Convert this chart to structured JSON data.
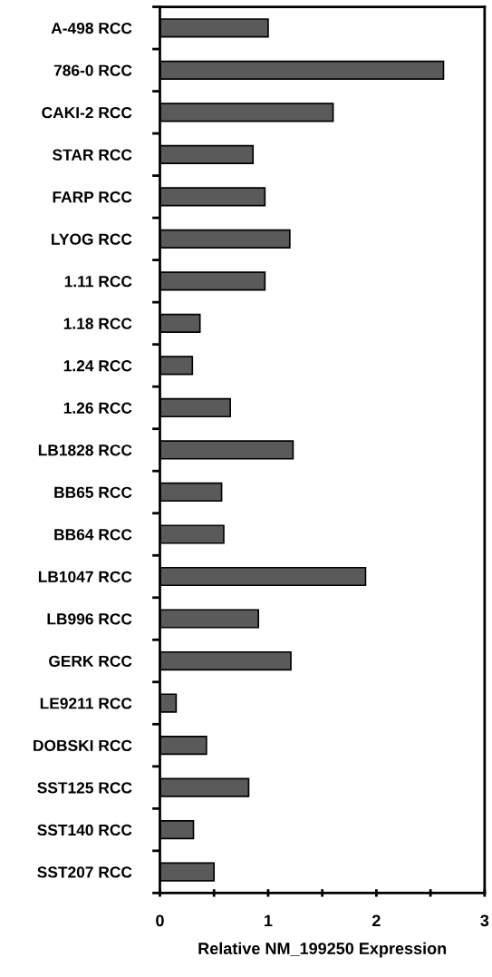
{
  "chart_data": {
    "type": "bar",
    "orientation": "horizontal",
    "xlabel": "Relative NM_199250 Expression",
    "categories": [
      "A-498 RCC",
      "786-0 RCC",
      "CAKI-2 RCC",
      "STAR RCC",
      "FARP RCC",
      "LYOG RCC",
      "1.11 RCC",
      "1.18 RCC",
      "1.24 RCC",
      "1.26 RCC",
      "LB1828 RCC",
      "BB65 RCC",
      "BB64 RCC",
      "LB1047 RCC",
      "LB996 RCC",
      "GERK RCC",
      "LE9211 RCC",
      "DOBSKI RCC",
      "SST125 RCC",
      "SST140 RCC",
      "SST207 RCC"
    ],
    "values": [
      1.0,
      2.62,
      1.6,
      0.86,
      0.97,
      1.2,
      0.97,
      0.37,
      0.3,
      0.65,
      1.23,
      0.57,
      0.59,
      1.9,
      0.91,
      1.21,
      0.15,
      0.43,
      0.82,
      0.31,
      0.5
    ],
    "color": "#5a5a5a",
    "xlim": [
      0,
      3
    ],
    "xticks": [
      0,
      {
        "value": 0.5,
        "label": null
      },
      1,
      {
        "value": 1.5,
        "label": null
      },
      2,
      {
        "value": 2.5,
        "label": null
      },
      3
    ],
    "grid": false,
    "legend": false
  }
}
